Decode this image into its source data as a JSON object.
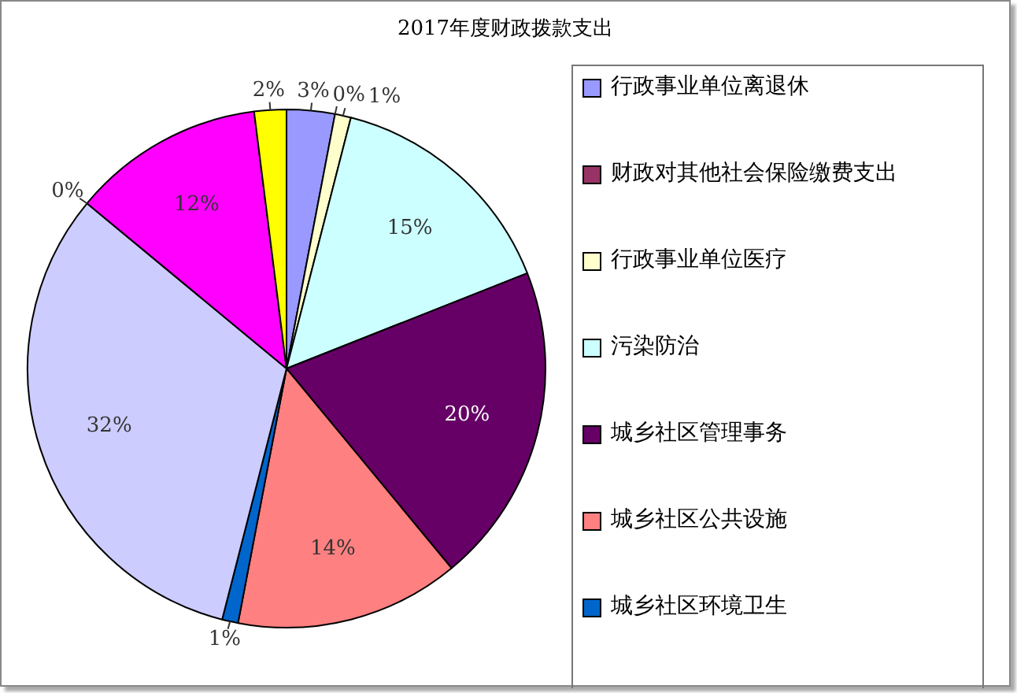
{
  "chart_data": {
    "type": "pie",
    "title": "2017年度财政拨款支出",
    "categories": [
      "行政事业单位离退休",
      "财政对其他社会保险缴费支出",
      "行政事业单位医疗",
      "污染防治",
      "城乡社区管理事务",
      "城乡社区公共设施",
      "城乡社区环境卫生",
      null,
      null,
      null,
      null
    ],
    "values": [
      3,
      0,
      1,
      15,
      20,
      14,
      1,
      32,
      0,
      12,
      2
    ],
    "value_labels": [
      "3%",
      "0%",
      "1%",
      "15%",
      "20%",
      "14%",
      "1%",
      "32%",
      "0%",
      "12%",
      "2%"
    ],
    "colors": [
      "#9999ff",
      "#993366",
      "#ffffcc",
      "#ccffff",
      "#660066",
      "#ff8080",
      "#0066cc",
      "#ccccff",
      "#000080",
      "#ff00ff",
      "#ffff00"
    ],
    "legend": "right"
  }
}
